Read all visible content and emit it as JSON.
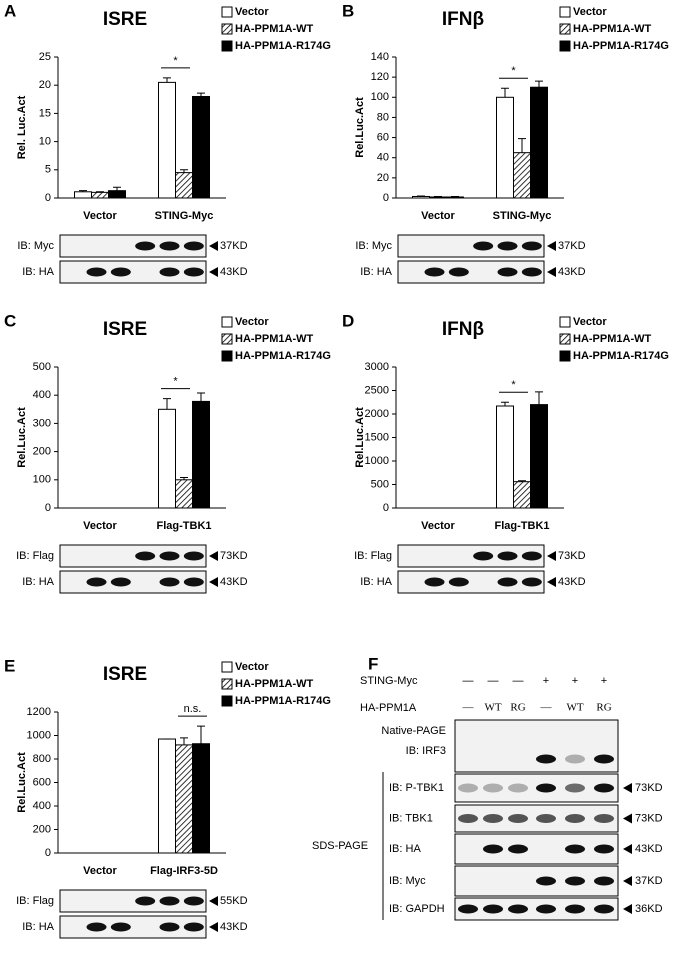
{
  "chart_data": [
    {
      "type": "bar",
      "panel": "A",
      "title": "ISRE",
      "y_label": "Rel. Luc.Act",
      "categories": [
        "Vector",
        "STING-Myc"
      ],
      "series": [
        {
          "name": "Vector",
          "color": "#ffffff",
          "values": [
            1.1,
            20.5
          ],
          "errors": [
            0.2,
            0.8
          ]
        },
        {
          "name": "HA-PPM1A-WT",
          "color": "#000000",
          "fill": "hatched",
          "values": [
            1.0,
            4.5
          ],
          "errors": [
            0.1,
            0.5
          ]
        },
        {
          "name": "HA-PPM1A-R174G",
          "color": "#000000",
          "values": [
            1.3,
            18
          ],
          "errors": [
            0.6,
            0.6
          ]
        }
      ],
      "ylim": [
        0,
        25
      ],
      "yticks": [
        0,
        5,
        10,
        15,
        20,
        25
      ],
      "annotation": "*",
      "blots": [
        {
          "label": "IB: Myc",
          "size": "37KD"
        },
        {
          "label": "IB: HA",
          "size": "43KD"
        }
      ]
    },
    {
      "type": "bar",
      "panel": "B",
      "title": "IFNβ",
      "y_label": "Rel.Luc.Act",
      "categories": [
        "Vector",
        "STING-Myc"
      ],
      "series": [
        {
          "name": "Vector",
          "color": "#ffffff",
          "values": [
            1.5,
            100
          ],
          "errors": [
            0.5,
            9
          ]
        },
        {
          "name": "HA-PPM1A-WT",
          "color": "#000000",
          "fill": "hatched",
          "values": [
            1,
            45
          ],
          "errors": [
            0.5,
            14
          ]
        },
        {
          "name": "HA-PPM1A-R174G",
          "color": "#000000",
          "values": [
            1,
            110
          ],
          "errors": [
            0.5,
            6
          ]
        }
      ],
      "ylim": [
        0,
        140
      ],
      "yticks": [
        0,
        20,
        40,
        60,
        80,
        100,
        120,
        140
      ],
      "annotation": "*",
      "blots": [
        {
          "label": "IB: Myc",
          "size": "37KD"
        },
        {
          "label": "IB: HA",
          "size": "43KD"
        }
      ]
    },
    {
      "type": "bar",
      "panel": "C",
      "title": "ISRE",
      "y_label": "Rel.Luc.Act",
      "categories": [
        "Vector",
        "Flag-TBK1"
      ],
      "series": [
        {
          "name": "Vector",
          "color": "#ffffff",
          "values": [
            0,
            350
          ],
          "errors": [
            0,
            38
          ]
        },
        {
          "name": "HA-PPM1A-WT",
          "color": "#000000",
          "fill": "hatched",
          "values": [
            0,
            100
          ],
          "errors": [
            0,
            8
          ]
        },
        {
          "name": "HA-PPM1A-R174G",
          "color": "#000000",
          "values": [
            0,
            378
          ],
          "errors": [
            0,
            30
          ]
        }
      ],
      "ylim": [
        0,
        500
      ],
      "yticks": [
        0,
        100,
        200,
        300,
        400,
        500
      ],
      "annotation": "*",
      "blots": [
        {
          "label": "IB: Flag",
          "size": "73KD"
        },
        {
          "label": "IB: HA",
          "size": "43KD"
        }
      ]
    },
    {
      "type": "bar",
      "panel": "D",
      "title": "IFNβ",
      "y_label": "Rel.Luc.Act",
      "categories": [
        "Vector",
        "Flag-TBK1"
      ],
      "series": [
        {
          "name": "Vector",
          "color": "#ffffff",
          "values": [
            0,
            2170
          ],
          "errors": [
            0,
            80
          ]
        },
        {
          "name": "HA-PPM1A-WT",
          "color": "#000000",
          "fill": "hatched",
          "values": [
            0,
            560
          ],
          "errors": [
            0,
            20
          ]
        },
        {
          "name": "HA-PPM1A-R174G",
          "color": "#000000",
          "values": [
            0,
            2200
          ],
          "errors": [
            0,
            270
          ]
        }
      ],
      "ylim": [
        0,
        3000
      ],
      "yticks": [
        0,
        500,
        1000,
        1500,
        2000,
        2500,
        3000
      ],
      "annotation": "*",
      "blots": [
        {
          "label": "IB: Flag",
          "size": "73KD"
        },
        {
          "label": "IB: HA",
          "size": "43KD"
        }
      ]
    },
    {
      "type": "bar",
      "panel": "E",
      "title": "ISRE",
      "y_label": "Rel.Luc.Act",
      "categories": [
        "Vector",
        "Flag-IRF3-5D"
      ],
      "series": [
        {
          "name": "Vector",
          "color": "#ffffff",
          "values": [
            0,
            970
          ],
          "errors": [
            0,
            0
          ]
        },
        {
          "name": "HA-PPM1A-WT",
          "color": "#000000",
          "fill": "hatched",
          "values": [
            0,
            920
          ],
          "errors": [
            0,
            60
          ]
        },
        {
          "name": "HA-PPM1A-R174G",
          "color": "#000000",
          "values": [
            0,
            930
          ],
          "errors": [
            0,
            150
          ]
        }
      ],
      "ylim": [
        0,
        1200
      ],
      "yticks": [
        0,
        200,
        400,
        600,
        800,
        1000,
        1200
      ],
      "annotation": "n.s.",
      "blots": [
        {
          "label": "IB: Flag",
          "size": "55KD"
        },
        {
          "label": "IB: HA",
          "size": "43KD"
        }
      ]
    }
  ],
  "panel_f": {
    "panel": "F",
    "conditions": [
      {
        "name": "STING-Myc",
        "lanes": [
          "—",
          "—",
          "—",
          "+",
          "+",
          "+"
        ]
      },
      {
        "name": "HA-PPM1A",
        "lanes": [
          "—",
          "WT",
          "RG",
          "—",
          "WT",
          "RG"
        ]
      }
    ],
    "native_label": "Native-PAGE",
    "sds_label": "SDS-PAGE",
    "blots": [
      {
        "label": "IB: IRF3"
      },
      {
        "label": "IB: P-TBK1",
        "size": "73KD"
      },
      {
        "label": "IB: TBK1",
        "size": "73KD"
      },
      {
        "label": "IB: HA",
        "size": "43KD"
      },
      {
        "label": "IB: Myc",
        "size": "37KD"
      },
      {
        "label": "IB: GAPDH",
        "size": "36KD"
      }
    ]
  }
}
